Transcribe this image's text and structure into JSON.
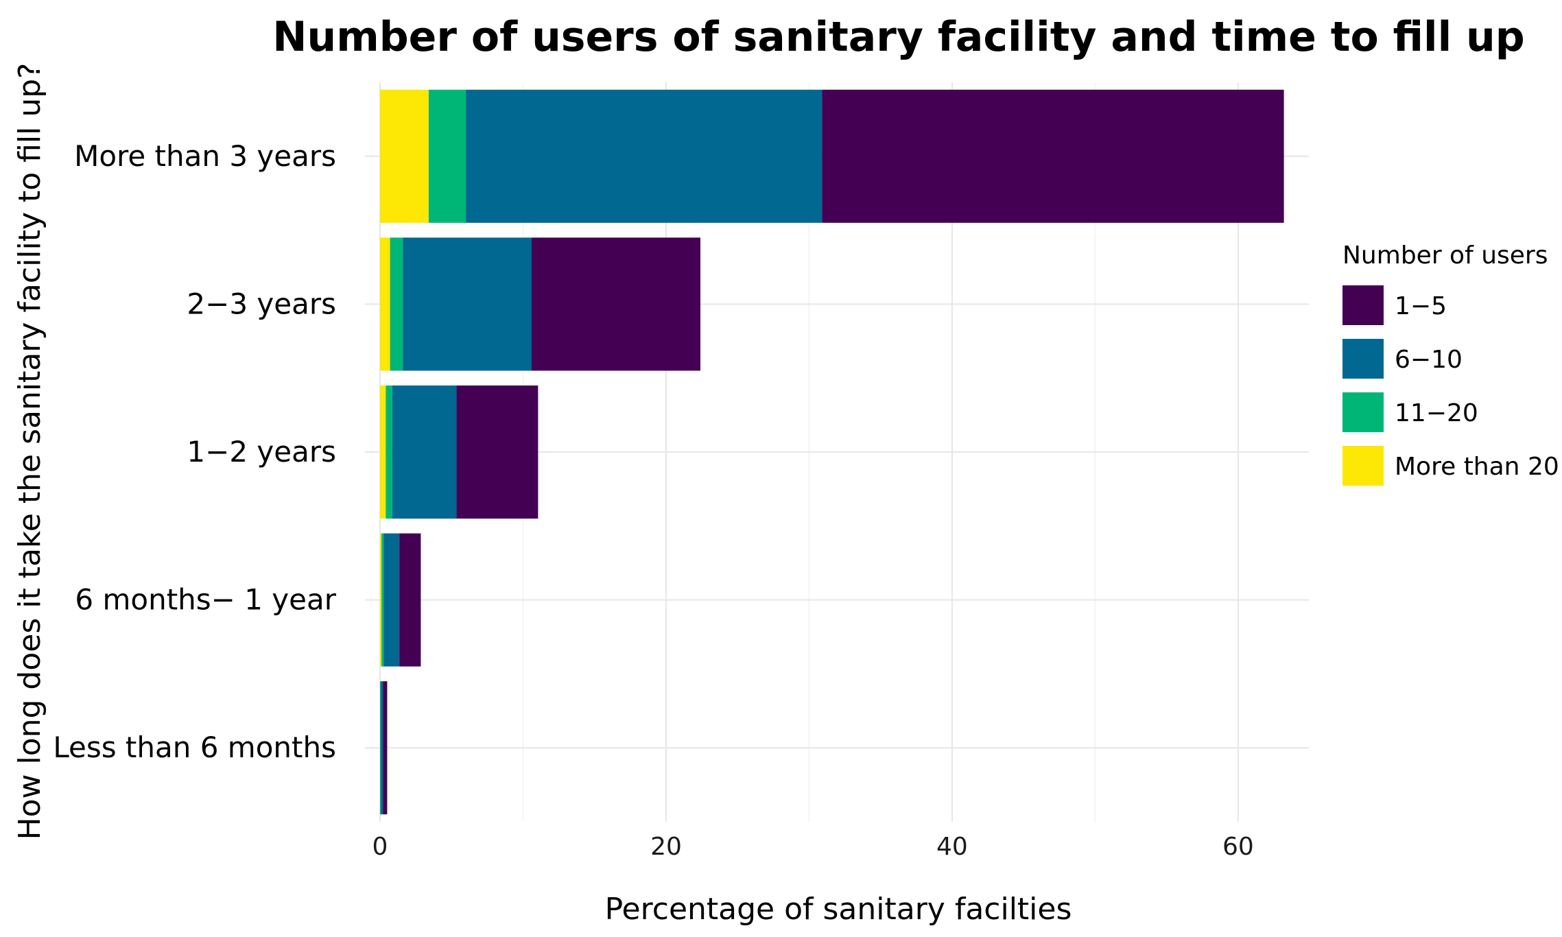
{
  "chart_data": {
    "type": "bar",
    "orientation": "horizontal",
    "stacked": true,
    "title": "Number of users of sanitary facility and time to fill up",
    "xlabel": "Percentage of sanitary facilties",
    "ylabel": "How long does it take the sanitary facility to fill up?",
    "xlim": [
      0,
      66
    ],
    "xticks": [
      0,
      20,
      40,
      60
    ],
    "grid": true,
    "legend_title": "Number of users",
    "legend_position": "right",
    "categories": [
      "More than 3 years",
      "2−3 years",
      "1−2 years",
      "6 months− 1 year",
      "Less than 6 months"
    ],
    "series": [
      {
        "name": "1−5",
        "color": "#440154",
        "values": [
          32.3,
          11.8,
          5.7,
          1.5,
          0.3
        ]
      },
      {
        "name": "6−10",
        "color": "#006891",
        "values": [
          24.9,
          9.0,
          4.5,
          1.1,
          0.15
        ]
      },
      {
        "name": "11−20",
        "color": "#00B677",
        "values": [
          2.6,
          0.9,
          0.45,
          0.15,
          0.05
        ]
      },
      {
        "name": "More than 20",
        "color": "#FDE704",
        "values": [
          3.4,
          0.7,
          0.4,
          0.1,
          0.0
        ]
      }
    ],
    "stack_order_from_zero": [
      "More than 20",
      "11−20",
      "6−10",
      "1−5"
    ]
  }
}
